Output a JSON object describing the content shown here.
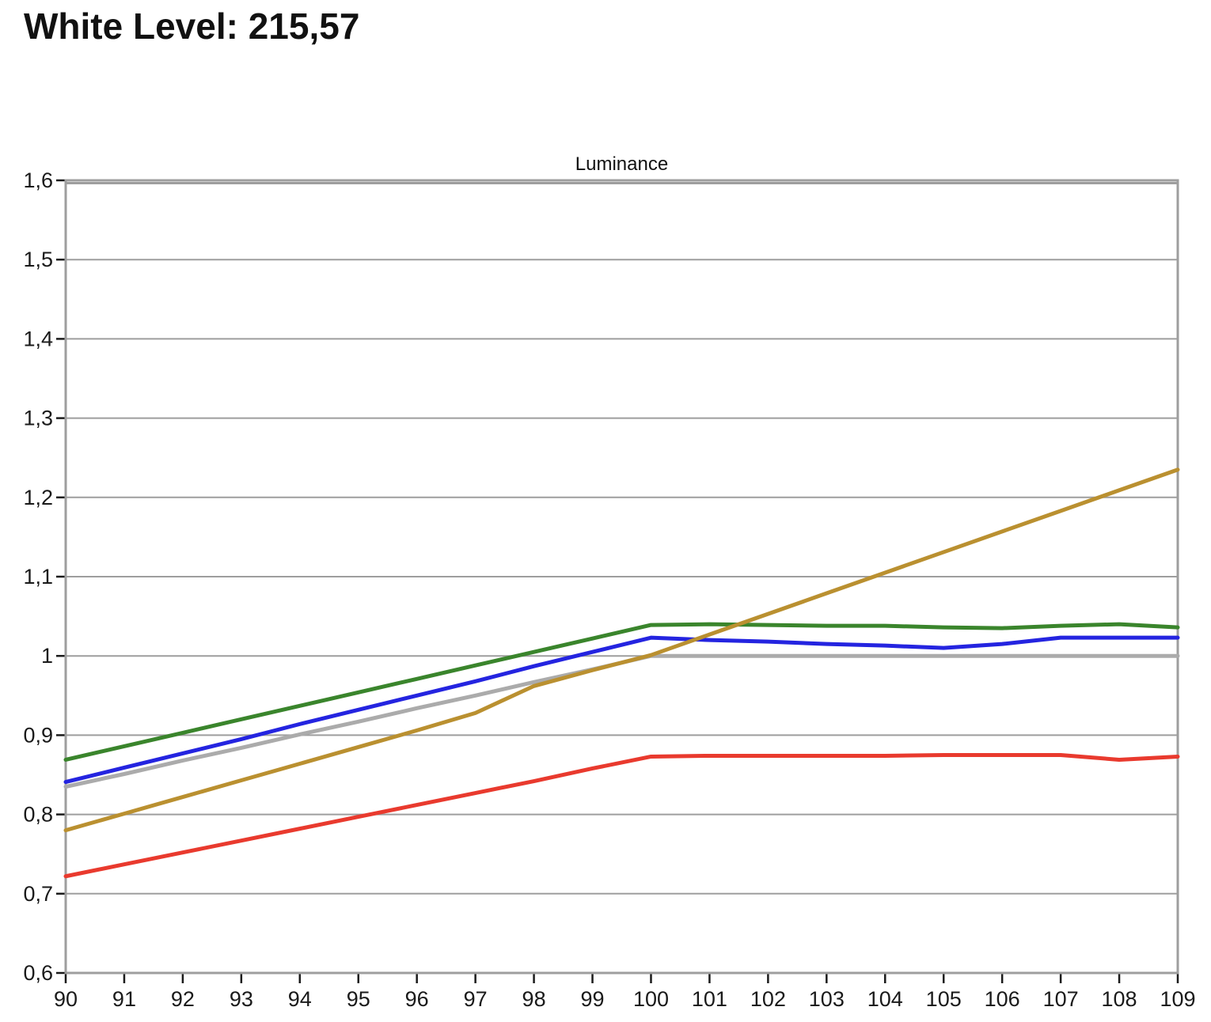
{
  "header": {
    "title": "White Level: 215,57"
  },
  "colors": {
    "background": "#ffffff",
    "text": "#111111",
    "grid": "#9E9E9E",
    "border": "#9E9E9E",
    "tick": "#1a1a1a"
  },
  "chart_data": {
    "type": "line",
    "title": "Luminance",
    "xlabel": "",
    "ylabel": "",
    "xlim": [
      90,
      109
    ],
    "ylim": [
      0.6,
      1.6
    ],
    "grid": "horizontal-only",
    "legend": "none",
    "x": [
      90,
      91,
      92,
      93,
      94,
      95,
      96,
      97,
      98,
      99,
      100,
      101,
      102,
      103,
      104,
      105,
      106,
      107,
      108,
      109
    ],
    "y_ticks": [
      0.6,
      0.7,
      0.8,
      0.9,
      1.0,
      1.1,
      1.2,
      1.3,
      1.4,
      1.5,
      1.6
    ],
    "y_tick_labels": [
      "0,6",
      "0,7",
      "0,8",
      "0,9",
      "1",
      "1,1",
      "1,2",
      "1,3",
      "1,4",
      "1,5",
      "1,6"
    ],
    "series": [
      {
        "name": "gray-reference",
        "color": "#ABABAB",
        "values": [
          0.835,
          0.851,
          0.868,
          0.884,
          0.901,
          0.917,
          0.934,
          0.95,
          0.967,
          0.983,
          1.0,
          1.0,
          1.0,
          1.0,
          1.0,
          1.0,
          1.0,
          1.0,
          1.0,
          1.0
        ]
      },
      {
        "name": "green",
        "color": "#3A852C",
        "values": [
          0.869,
          0.886,
          0.903,
          0.92,
          0.937,
          0.954,
          0.971,
          0.988,
          1.005,
          1.022,
          1.039,
          1.04,
          1.039,
          1.038,
          1.038,
          1.036,
          1.035,
          1.038,
          1.04,
          1.036
        ]
      },
      {
        "name": "blue",
        "color": "#2424E0",
        "values": [
          0.841,
          0.859,
          0.877,
          0.895,
          0.914,
          0.932,
          0.95,
          0.968,
          0.987,
          1.005,
          1.023,
          1.02,
          1.018,
          1.015,
          1.013,
          1.01,
          1.015,
          1.023,
          1.023,
          1.023
        ]
      },
      {
        "name": "gold",
        "color": "#BA9030",
        "values": [
          0.78,
          0.801,
          0.822,
          0.843,
          0.864,
          0.885,
          0.906,
          0.928,
          0.962,
          0.982,
          1.001,
          1.027,
          1.053,
          1.079,
          1.105,
          1.131,
          1.157,
          1.183,
          1.209,
          1.235
        ]
      },
      {
        "name": "red",
        "color": "#E93A2E",
        "values": [
          0.722,
          0.737,
          0.752,
          0.767,
          0.782,
          0.797,
          0.812,
          0.827,
          0.842,
          0.858,
          0.873,
          0.874,
          0.874,
          0.874,
          0.874,
          0.875,
          0.875,
          0.875,
          0.869,
          0.873
        ]
      }
    ]
  }
}
